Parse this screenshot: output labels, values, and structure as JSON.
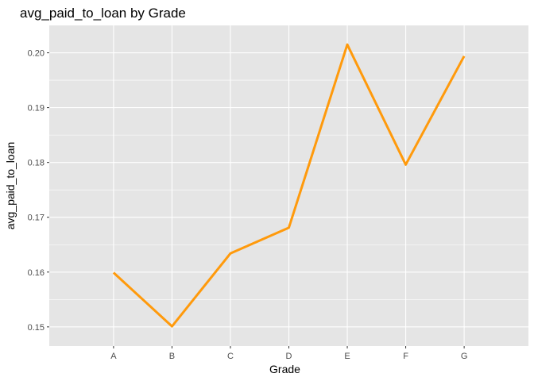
{
  "chart_data": {
    "type": "line",
    "title": "avg_paid_to_loan by Grade",
    "xlabel": "Grade",
    "ylabel": "avg_paid_to_loan",
    "categories": [
      "A",
      "B",
      "C",
      "D",
      "E",
      "F",
      "G"
    ],
    "values": [
      0.1599,
      0.1501,
      0.1634,
      0.1681,
      0.2015,
      0.1796,
      0.1994
    ],
    "ylim": [
      0.1465,
      0.205
    ],
    "yticks": [
      0.15,
      0.16,
      0.17,
      0.18,
      0.19,
      0.2
    ],
    "ytick_labels": [
      "0.15",
      "0.16",
      "0.17",
      "0.18",
      "0.19",
      "0.20"
    ],
    "line_color": "#ff9a0c",
    "panel_background": "#e5e5e5",
    "grid_color": "#ffffff",
    "grid": true
  }
}
